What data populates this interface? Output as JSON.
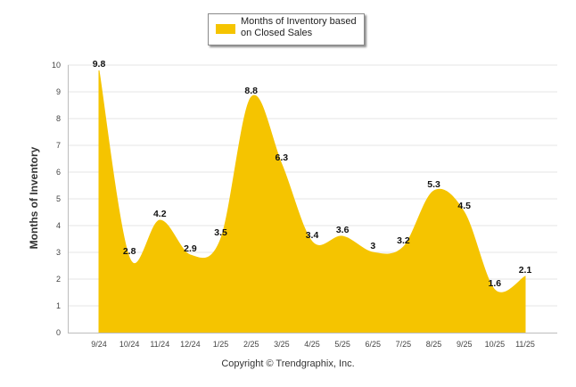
{
  "chart_data": {
    "type": "area",
    "categories": [
      "9/24",
      "10/24",
      "11/24",
      "12/24",
      "1/25",
      "2/25",
      "3/25",
      "4/25",
      "5/25",
      "6/25",
      "7/25",
      "8/25",
      "9/25",
      "10/25",
      "11/25"
    ],
    "series": [
      {
        "name": "Months of Inventory based on Closed Sales",
        "values": [
          9.8,
          2.8,
          4.2,
          2.9,
          3.5,
          8.8,
          6.3,
          3.4,
          3.6,
          3,
          3.2,
          5.3,
          4.5,
          1.6,
          2.1
        ],
        "color": "#F5C400"
      }
    ],
    "data_labels": [
      "9.8",
      "2.8",
      "4.2",
      "2.9",
      "3.5",
      "8.8",
      "6.3",
      "3.4",
      "3.6",
      "3",
      "3.2",
      "5.3",
      "4.5",
      "1.6",
      "2.1"
    ],
    "y_ticks": [
      "0",
      "1",
      "2",
      "3",
      "4",
      "5",
      "6",
      "7",
      "8",
      "9",
      "10"
    ],
    "ylabel": "Months of Inventory",
    "xlabel": "",
    "ylim": [
      0,
      10
    ],
    "grid": true,
    "legend": {
      "position": "top-center",
      "label": "Months of Inventory based on Closed Sales"
    }
  },
  "footer": {
    "copyright": "Copyright © Trendgraphix, Inc."
  }
}
